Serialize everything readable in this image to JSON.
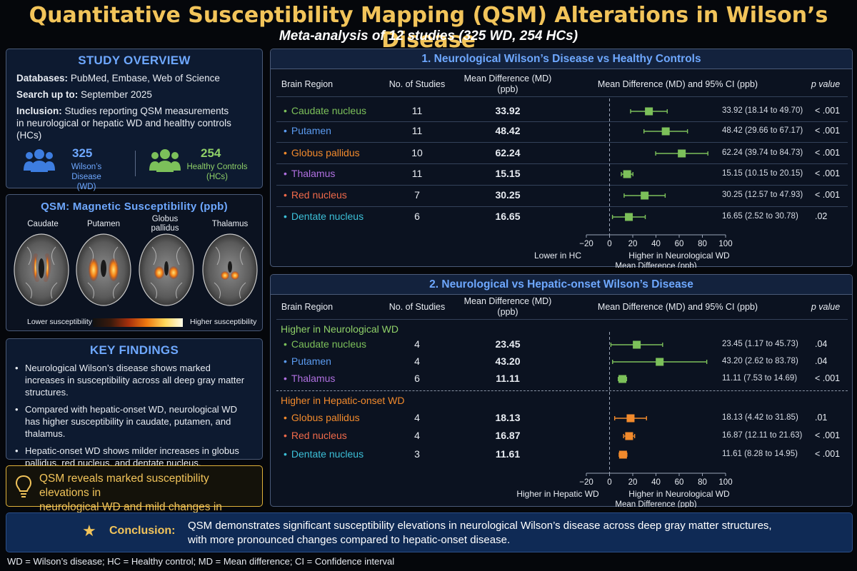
{
  "title": "Quantitative Susceptibility Mapping (QSM) Alterations in Wilson’s Disease",
  "subtitle": "Meta-analysis of 12 studies (325 WD, 254 HCs)",
  "overview": {
    "heading": "STUDY OVERVIEW",
    "databases_label": "Databases:",
    "databases": "PubMed, Embase, Web of Science",
    "search_label": "Search up to:",
    "search": "September 2025",
    "inclusion_label": "Inclusion:",
    "inclusion_1": "Studies reporting QSM measurements",
    "inclusion_2": "in neurological or hepatic WD and healthy controls",
    "inclusion_3": "(HCs)",
    "wd_count": "325",
    "wd_label_1": "Wilson’s Disease",
    "wd_label_2": "(WD)",
    "hc_count": "254",
    "hc_label_1": "Healthy Controls",
    "hc_label_2": "(HCs)",
    "wd_color": "#3d7de0",
    "hc_color": "#7cc05a"
  },
  "qsm": {
    "heading": "QSM: Magnetic Susceptibility (ppb)",
    "brains": [
      "Caudate",
      "Putamen",
      "Globus pallidus",
      "Thalamus"
    ],
    "brains_wrapped": [
      "Caudate",
      "Putamen",
      "Globus\npallidus",
      "Thalamus"
    ],
    "low_label": "Lower susceptibility",
    "high_label": "Higher susceptibility"
  },
  "findings": {
    "heading": "KEY FINDINGS",
    "items": [
      "Neurological Wilson’s disease shows marked increases in susceptibility across all deep gray matter structures.",
      "Compared with hepatic-onset WD, neurological WD has higher susceptibility in caudate, putamen, and thalamus.",
      "Hepatic-onset WD shows milder increases in globus pallidus, red nucleus, and dentate nucleus."
    ]
  },
  "callout": {
    "icon": "lightbulb-icon",
    "line1": "QSM reveals marked susceptibility elevations in",
    "line2": "neurological WD and mild changes in hepatic WD."
  },
  "columns": {
    "region": "Brain Region",
    "studies": "No. of Studies",
    "md_1": "Mean Difference (MD)",
    "md_2": "(ppb)",
    "forest": "Mean Difference (MD) and 95% CI (ppb)",
    "p": "p value"
  },
  "panel1": {
    "heading": "1.  Neurological Wilson’s Disease vs Healthy Controls",
    "rows": [
      {
        "region": "Caudate nucleus",
        "color": "#7cc05a",
        "studies": "11",
        "md": 33.92,
        "md_text": "33.92",
        "lo": 18.14,
        "hi": 49.7,
        "ci_text": "33.92 (18.14 to 49.70)",
        "p": "< .001"
      },
      {
        "region": "Putamen",
        "color": "#5b9bf0",
        "studies": "11",
        "md": 48.42,
        "md_text": "48.42",
        "lo": 29.66,
        "hi": 67.17,
        "ci_text": "48.42 (29.66 to 67.17)",
        "p": "< .001"
      },
      {
        "region": "Globus pallidus",
        "color": "#f28a2c",
        "studies": "10",
        "md": 62.24,
        "md_text": "62.24",
        "lo": 39.74,
        "hi": 84.73,
        "ci_text": "62.24 (39.74 to 84.73)",
        "p": "< .001"
      },
      {
        "region": "Thalamus",
        "color": "#b070e0",
        "studies": "11",
        "md": 15.15,
        "md_text": "15.15",
        "lo": 10.15,
        "hi": 20.15,
        "ci_text": "15.15 (10.15 to 20.15)",
        "p": "< .001"
      },
      {
        "region": "Red nucleus",
        "color": "#f06a4a",
        "studies": "7",
        "md": 30.25,
        "md_text": "30.25",
        "lo": 12.57,
        "hi": 47.93,
        "ci_text": "30.25 (12.57 to 47.93)",
        "p": "< .001"
      },
      {
        "region": "Dentate nucleus",
        "color": "#3cc0d8",
        "studies": "6",
        "md": 16.65,
        "md_text": "16.65",
        "lo": 2.52,
        "hi": 30.78,
        "ci_text": "16.65 (2.52 to 30.78)",
        "p": ".02"
      }
    ],
    "axis": {
      "ticks": [
        -20,
        0,
        20,
        40,
        60,
        80,
        100
      ],
      "tick_labels": [
        "−20",
        "0",
        "20",
        "40",
        "60",
        "80",
        "100"
      ],
      "left_label": "Lower in HC",
      "right_label": "Higher in Neurological WD",
      "xlabel": "Mean Difference (ppb)"
    },
    "marker_color": "#7cc05a"
  },
  "panel2": {
    "heading": "2.  Neurological vs Hepatic-onset Wilson’s Disease",
    "group1_label": "Higher in Neurological WD",
    "group1_color": "#7cc05a",
    "group2_label": "Higher in Hepatic-onset WD",
    "group2_color": "#f28a2c",
    "rows": [
      {
        "region": "Caudate nucleus",
        "color": "#7cc05a",
        "studies": "4",
        "md": 23.45,
        "md_text": "23.45",
        "lo": 1.17,
        "hi": 45.73,
        "ci_text": "23.45 (1.17 to 45.73)",
        "p": ".04",
        "marker": "#7cc05a"
      },
      {
        "region": "Putamen",
        "color": "#5b9bf0",
        "studies": "4",
        "md": 43.2,
        "md_text": "43.20",
        "lo": 2.62,
        "hi": 83.78,
        "ci_text": "43.20 (2.62 to 83.78)",
        "p": ".04",
        "marker": "#7cc05a"
      },
      {
        "region": "Thalamus",
        "color": "#b070e0",
        "studies": "6",
        "md": 11.11,
        "md_text": "11.11",
        "lo": 7.53,
        "hi": 14.69,
        "ci_text": "11.11 (7.53 to 14.69)",
        "p": "< .001",
        "marker": "#7cc05a"
      },
      {
        "region": "Globus pallidus",
        "color": "#f28a2c",
        "studies": "4",
        "md": 18.13,
        "md_text": "18.13",
        "lo": 4.42,
        "hi": 31.85,
        "ci_text": "18.13 (4.42 to 31.85)",
        "p": ".01",
        "marker": "#f28a2c"
      },
      {
        "region": "Red nucleus",
        "color": "#f06a4a",
        "studies": "4",
        "md": 16.87,
        "md_text": "16.87",
        "lo": 12.11,
        "hi": 21.63,
        "ci_text": "16.87 (12.11 to 21.63)",
        "p": "< .001",
        "marker": "#f28a2c"
      },
      {
        "region": "Dentate nucleus",
        "color": "#3cc0d8",
        "studies": "3",
        "md": 11.61,
        "md_text": "11.61",
        "lo": 8.28,
        "hi": 14.95,
        "ci_text": "11.61 (8.28 to 14.95)",
        "p": "< .001",
        "marker": "#f28a2c"
      }
    ],
    "axis": {
      "ticks": [
        -20,
        0,
        20,
        40,
        60,
        80,
        100
      ],
      "tick_labels": [
        "−20",
        "0",
        "20",
        "40",
        "60",
        "80",
        "100"
      ],
      "left_label": "Higher in Hepatic WD",
      "right_label": "Higher in Neurological WD",
      "xlabel": "Mean Difference (ppb)"
    }
  },
  "chart_data": [
    {
      "type": "forest",
      "title": "1.  Neurological Wilson’s Disease vs Healthy Controls",
      "xlabel": "Mean Difference (ppb)",
      "xlim": [
        -20,
        100
      ],
      "categories": [
        "Caudate nucleus",
        "Putamen",
        "Globus pallidus",
        "Thalamus",
        "Red nucleus",
        "Dentate nucleus"
      ],
      "values": [
        33.92,
        48.42,
        62.24,
        15.15,
        30.25,
        16.65
      ],
      "ci_low": [
        18.14,
        29.66,
        39.74,
        10.15,
        12.57,
        2.52
      ],
      "ci_high": [
        49.7,
        67.17,
        84.73,
        20.15,
        47.93,
        30.78
      ]
    },
    {
      "type": "forest",
      "title": "2.  Neurological vs Hepatic-onset Wilson’s Disease",
      "xlabel": "Mean Difference (ppb)",
      "xlim": [
        -20,
        100
      ],
      "categories": [
        "Caudate nucleus",
        "Putamen",
        "Thalamus",
        "Globus pallidus",
        "Red nucleus",
        "Dentate nucleus"
      ],
      "values": [
        23.45,
        43.2,
        11.11,
        18.13,
        16.87,
        11.61
      ],
      "ci_low": [
        1.17,
        2.62,
        7.53,
        4.42,
        12.11,
        8.28
      ],
      "ci_high": [
        45.73,
        83.78,
        14.69,
        31.85,
        21.63,
        14.95
      ]
    }
  ],
  "conclusion": {
    "label": "Conclusion:",
    "line1": "QSM demonstrates significant susceptibility elevations in neurological Wilson’s disease across deep gray matter structures,",
    "line2": "with more pronounced changes compared to hepatic-onset disease."
  },
  "footnote": "WD = Wilson’s disease; HC = Healthy control; MD = Mean difference;  CI = Confidence interval"
}
